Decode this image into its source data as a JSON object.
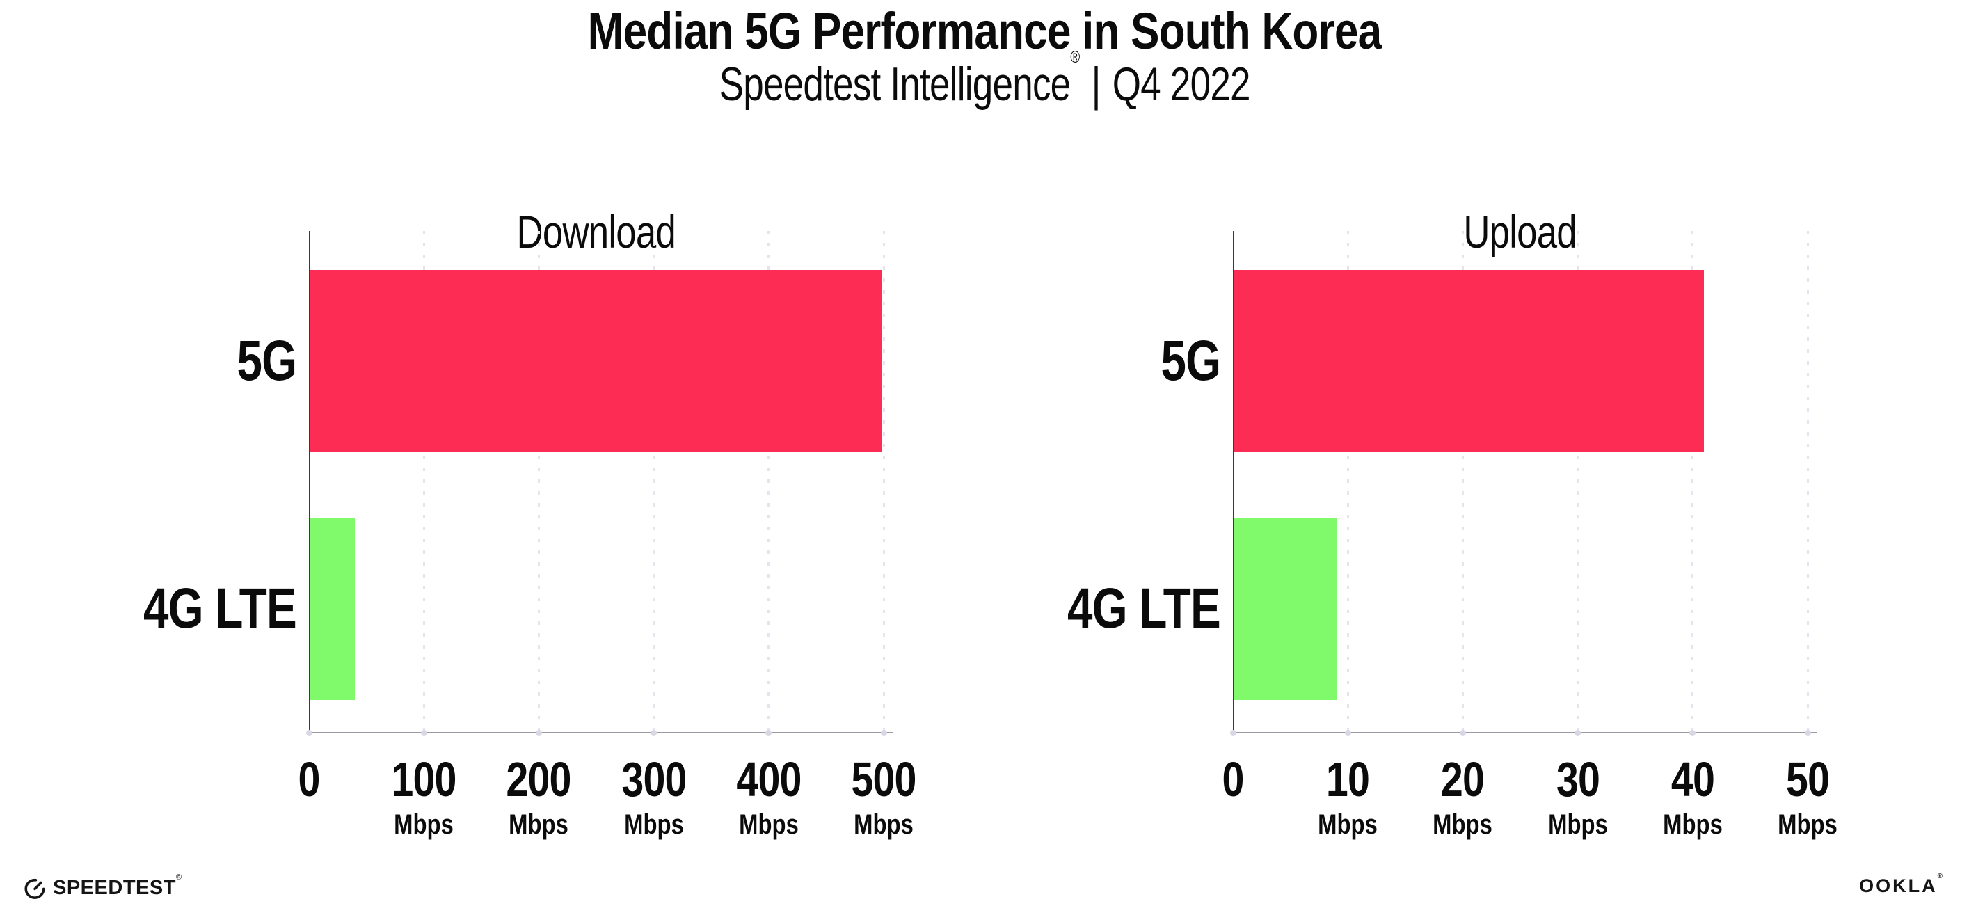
{
  "header": {
    "title": "Median 5G Performance in South Korea",
    "subtitle_brand": "Speedtest Intelligence",
    "subtitle_reg": "®",
    "subtitle_separator": "|",
    "subtitle_period": "Q4 2022"
  },
  "chart_data": [
    {
      "type": "bar",
      "orientation": "horizontal",
      "title": "Download",
      "categories": [
        "5G",
        "4G LTE"
      ],
      "values": [
        498,
        40
      ],
      "unit": "Mbps",
      "xlabel": "",
      "ylabel": "",
      "xlim": [
        0,
        500
      ],
      "xticks": [
        0,
        100,
        200,
        300,
        400,
        500
      ],
      "bar_colors": [
        "#FD2C55",
        "#80FA6B"
      ],
      "grid": "dotted-vertical",
      "legend": "none"
    },
    {
      "type": "bar",
      "orientation": "horizontal",
      "title": "Upload",
      "categories": [
        "5G",
        "4G LTE"
      ],
      "values": [
        41,
        9
      ],
      "unit": "Mbps",
      "xlabel": "",
      "ylabel": "",
      "xlim": [
        0,
        50
      ],
      "xticks": [
        0,
        10,
        20,
        30,
        40,
        50
      ],
      "bar_colors": [
        "#FD2C55",
        "#80FA6B"
      ],
      "grid": "dotted-vertical",
      "legend": "none"
    }
  ],
  "footer": {
    "speedtest_label": "SPEEDTEST",
    "speedtest_reg": "®",
    "ookla_label": "OOKLA",
    "ookla_reg": "®"
  },
  "colors": {
    "bar_5g": "#FD2C55",
    "bar_4g_lte": "#80FA6B",
    "axis": "#3A3A3A",
    "baseline": "#9B9BA4",
    "grid_dot": "#E3E4EE",
    "text": "#0B0B0B"
  }
}
